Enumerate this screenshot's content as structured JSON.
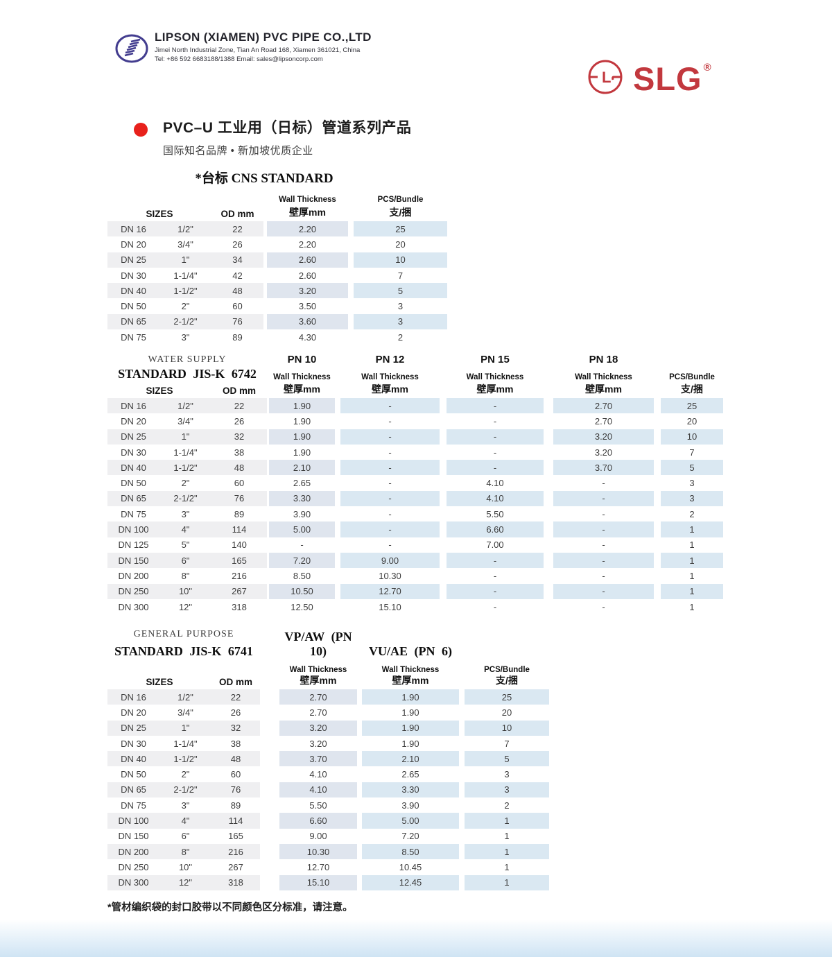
{
  "colors": {
    "brand_red": "#c2383e",
    "accent_dot_red": "#e8211c",
    "logo_navy": "#433d8f",
    "stripe_gray": "#efeff1",
    "cell_blue_a": "#dfe5ee",
    "cell_blue_b": "#dae8f2",
    "bottom_bar_blue": "#cfe4f4"
  },
  "header": {
    "company_name": "LIPSON (XIAMEN) PVC PIPE CO.,LTD",
    "address": "Jimei North Industrial Zone, Tian An Road 168, Xiamen 361021, China",
    "contact": "Tel: +86 592 6683188/1388  Email: sales@lipsoncorp.com",
    "brand": "SLG",
    "brand_registered_mark": "®",
    "brand_monogram": "L"
  },
  "title": {
    "main": "PVC–U 工业用（日标）管道系列产品",
    "subtitle": "国际知名品牌 • 新加坡优质企业"
  },
  "labels": {
    "sizes": "SIZES",
    "od": "OD mm",
    "wall_en": "Wall Thickness",
    "wall_cn": "壁厚mm",
    "pcs_en": "PCS/Bundle",
    "pcs_cn": "支/捆"
  },
  "table_cns": {
    "title": "*台标 CNS STANDARD",
    "rows": [
      [
        "DN 16",
        "1/2\"",
        "22",
        "2.20",
        "25"
      ],
      [
        "DN 20",
        "3/4\"",
        "26",
        "2.20",
        "20"
      ],
      [
        "DN 25",
        "1\"",
        "34",
        "2.60",
        "10"
      ],
      [
        "DN 30",
        "1-1/4\"",
        "42",
        "2.60",
        "7"
      ],
      [
        "DN 40",
        "1-1/2\"",
        "48",
        "3.20",
        "5"
      ],
      [
        "DN 50",
        "2\"",
        "60",
        "3.50",
        "3"
      ],
      [
        "DN 65",
        "2-1/2\"",
        "76",
        "3.60",
        "3"
      ],
      [
        "DN 75",
        "3\"",
        "89",
        "4.30",
        "2"
      ]
    ]
  },
  "table_water": {
    "subtitle1": "WATER SUPPLY",
    "subtitle2": "STANDARD JIS-K 6742",
    "pn10": "PN 10",
    "pn12": "PN 12",
    "pn15": "PN 15",
    "pn18": "PN 18",
    "rows": [
      [
        "DN 16",
        "1/2\"",
        "22",
        "1.90",
        "-",
        "-",
        "2.70",
        "25"
      ],
      [
        "DN 20",
        "3/4\"",
        "26",
        "1.90",
        "-",
        "-",
        "2.70",
        "20"
      ],
      [
        "DN 25",
        "1\"",
        "32",
        "1.90",
        "-",
        "-",
        "3.20",
        "10"
      ],
      [
        "DN 30",
        "1-1/4\"",
        "38",
        "1.90",
        "-",
        "-",
        "3.20",
        "7"
      ],
      [
        "DN 40",
        "1-1/2\"",
        "48",
        "2.10",
        "-",
        "-",
        "3.70",
        "5"
      ],
      [
        "DN 50",
        "2\"",
        "60",
        "2.65",
        "-",
        "4.10",
        "-",
        "3"
      ],
      [
        "DN 65",
        "2-1/2\"",
        "76",
        "3.30",
        "-",
        "4.10",
        "-",
        "3"
      ],
      [
        "DN 75",
        "3\"",
        "89",
        "3.90",
        "-",
        "5.50",
        "-",
        "2"
      ],
      [
        "DN 100",
        "4\"",
        "114",
        "5.00",
        "-",
        "6.60",
        "-",
        "1"
      ],
      [
        "DN 125",
        "5\"",
        "140",
        "-",
        "-",
        "7.00",
        "-",
        "1"
      ],
      [
        "DN 150",
        "6\"",
        "165",
        "7.20",
        "9.00",
        "-",
        "-",
        "1"
      ],
      [
        "DN 200",
        "8\"",
        "216",
        "8.50",
        "10.30",
        "-",
        "-",
        "1"
      ],
      [
        "DN 250",
        "10\"",
        "267",
        "10.50",
        "12.70",
        "-",
        "-",
        "1"
      ],
      [
        "DN 300",
        "12\"",
        "318",
        "12.50",
        "15.10",
        "-",
        "-",
        "1"
      ]
    ]
  },
  "table_general": {
    "subtitle1": "GENERAL PURPOSE",
    "subtitle2": "STANDARD JIS-K 6741",
    "col_vp": "VP/AW (PN 10)",
    "col_vu": "VU/AE (PN 6)",
    "rows": [
      [
        "DN 16",
        "1/2\"",
        "22",
        "2.70",
        "1.90",
        "25"
      ],
      [
        "DN 20",
        "3/4\"",
        "26",
        "2.70",
        "1.90",
        "20"
      ],
      [
        "DN 25",
        "1\"",
        "32",
        "3.20",
        "1.90",
        "10"
      ],
      [
        "DN 30",
        "1-1/4\"",
        "38",
        "3.20",
        "1.90",
        "7"
      ],
      [
        "DN 40",
        "1-1/2\"",
        "48",
        "3.70",
        "2.10",
        "5"
      ],
      [
        "DN 50",
        "2\"",
        "60",
        "4.10",
        "2.65",
        "3"
      ],
      [
        "DN 65",
        "2-1/2\"",
        "76",
        "4.10",
        "3.30",
        "3"
      ],
      [
        "DN 75",
        "3\"",
        "89",
        "5.50",
        "3.90",
        "2"
      ],
      [
        "DN 100",
        "4\"",
        "114",
        "6.60",
        "5.00",
        "1"
      ],
      [
        "DN 150",
        "6\"",
        "165",
        "9.00",
        "7.20",
        "1"
      ],
      [
        "DN 200",
        "8\"",
        "216",
        "10.30",
        "8.50",
        "1"
      ],
      [
        "DN 250",
        "10\"",
        "267",
        "12.70",
        "10.45",
        "1"
      ],
      [
        "DN 300",
        "12\"",
        "318",
        "15.10",
        "12.45",
        "1"
      ]
    ]
  },
  "footnote": "*管材编织袋的封口胶带以不同颜色区分标准，请注意。"
}
